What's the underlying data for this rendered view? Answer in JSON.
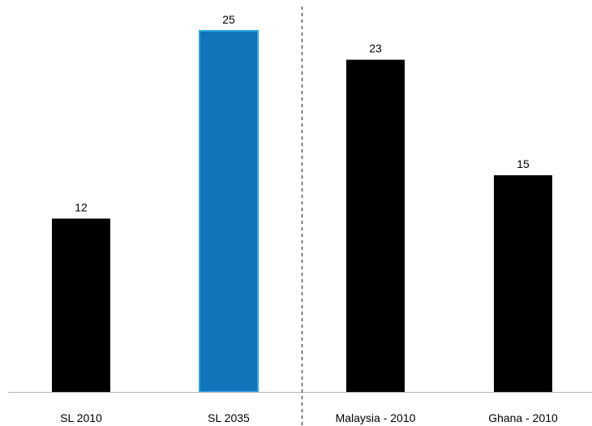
{
  "chart_data": {
    "type": "bar",
    "categories": [
      "SL 2010",
      "SL 2035",
      "Malaysia - 2010",
      "Ghana - 2010"
    ],
    "values": [
      12,
      25,
      23,
      15
    ],
    "bar_colors": [
      "#000000",
      "#1173BA",
      "#000000",
      "#000000"
    ],
    "highlight_edge_color": "#29A9E1",
    "title": "",
    "xlabel": "",
    "ylabel": "",
    "ylim": [
      0,
      25
    ],
    "data_labels": true,
    "grid": false,
    "legend": "none",
    "separator": "dashed line between SL 2035 and Malaysia - 2010"
  }
}
